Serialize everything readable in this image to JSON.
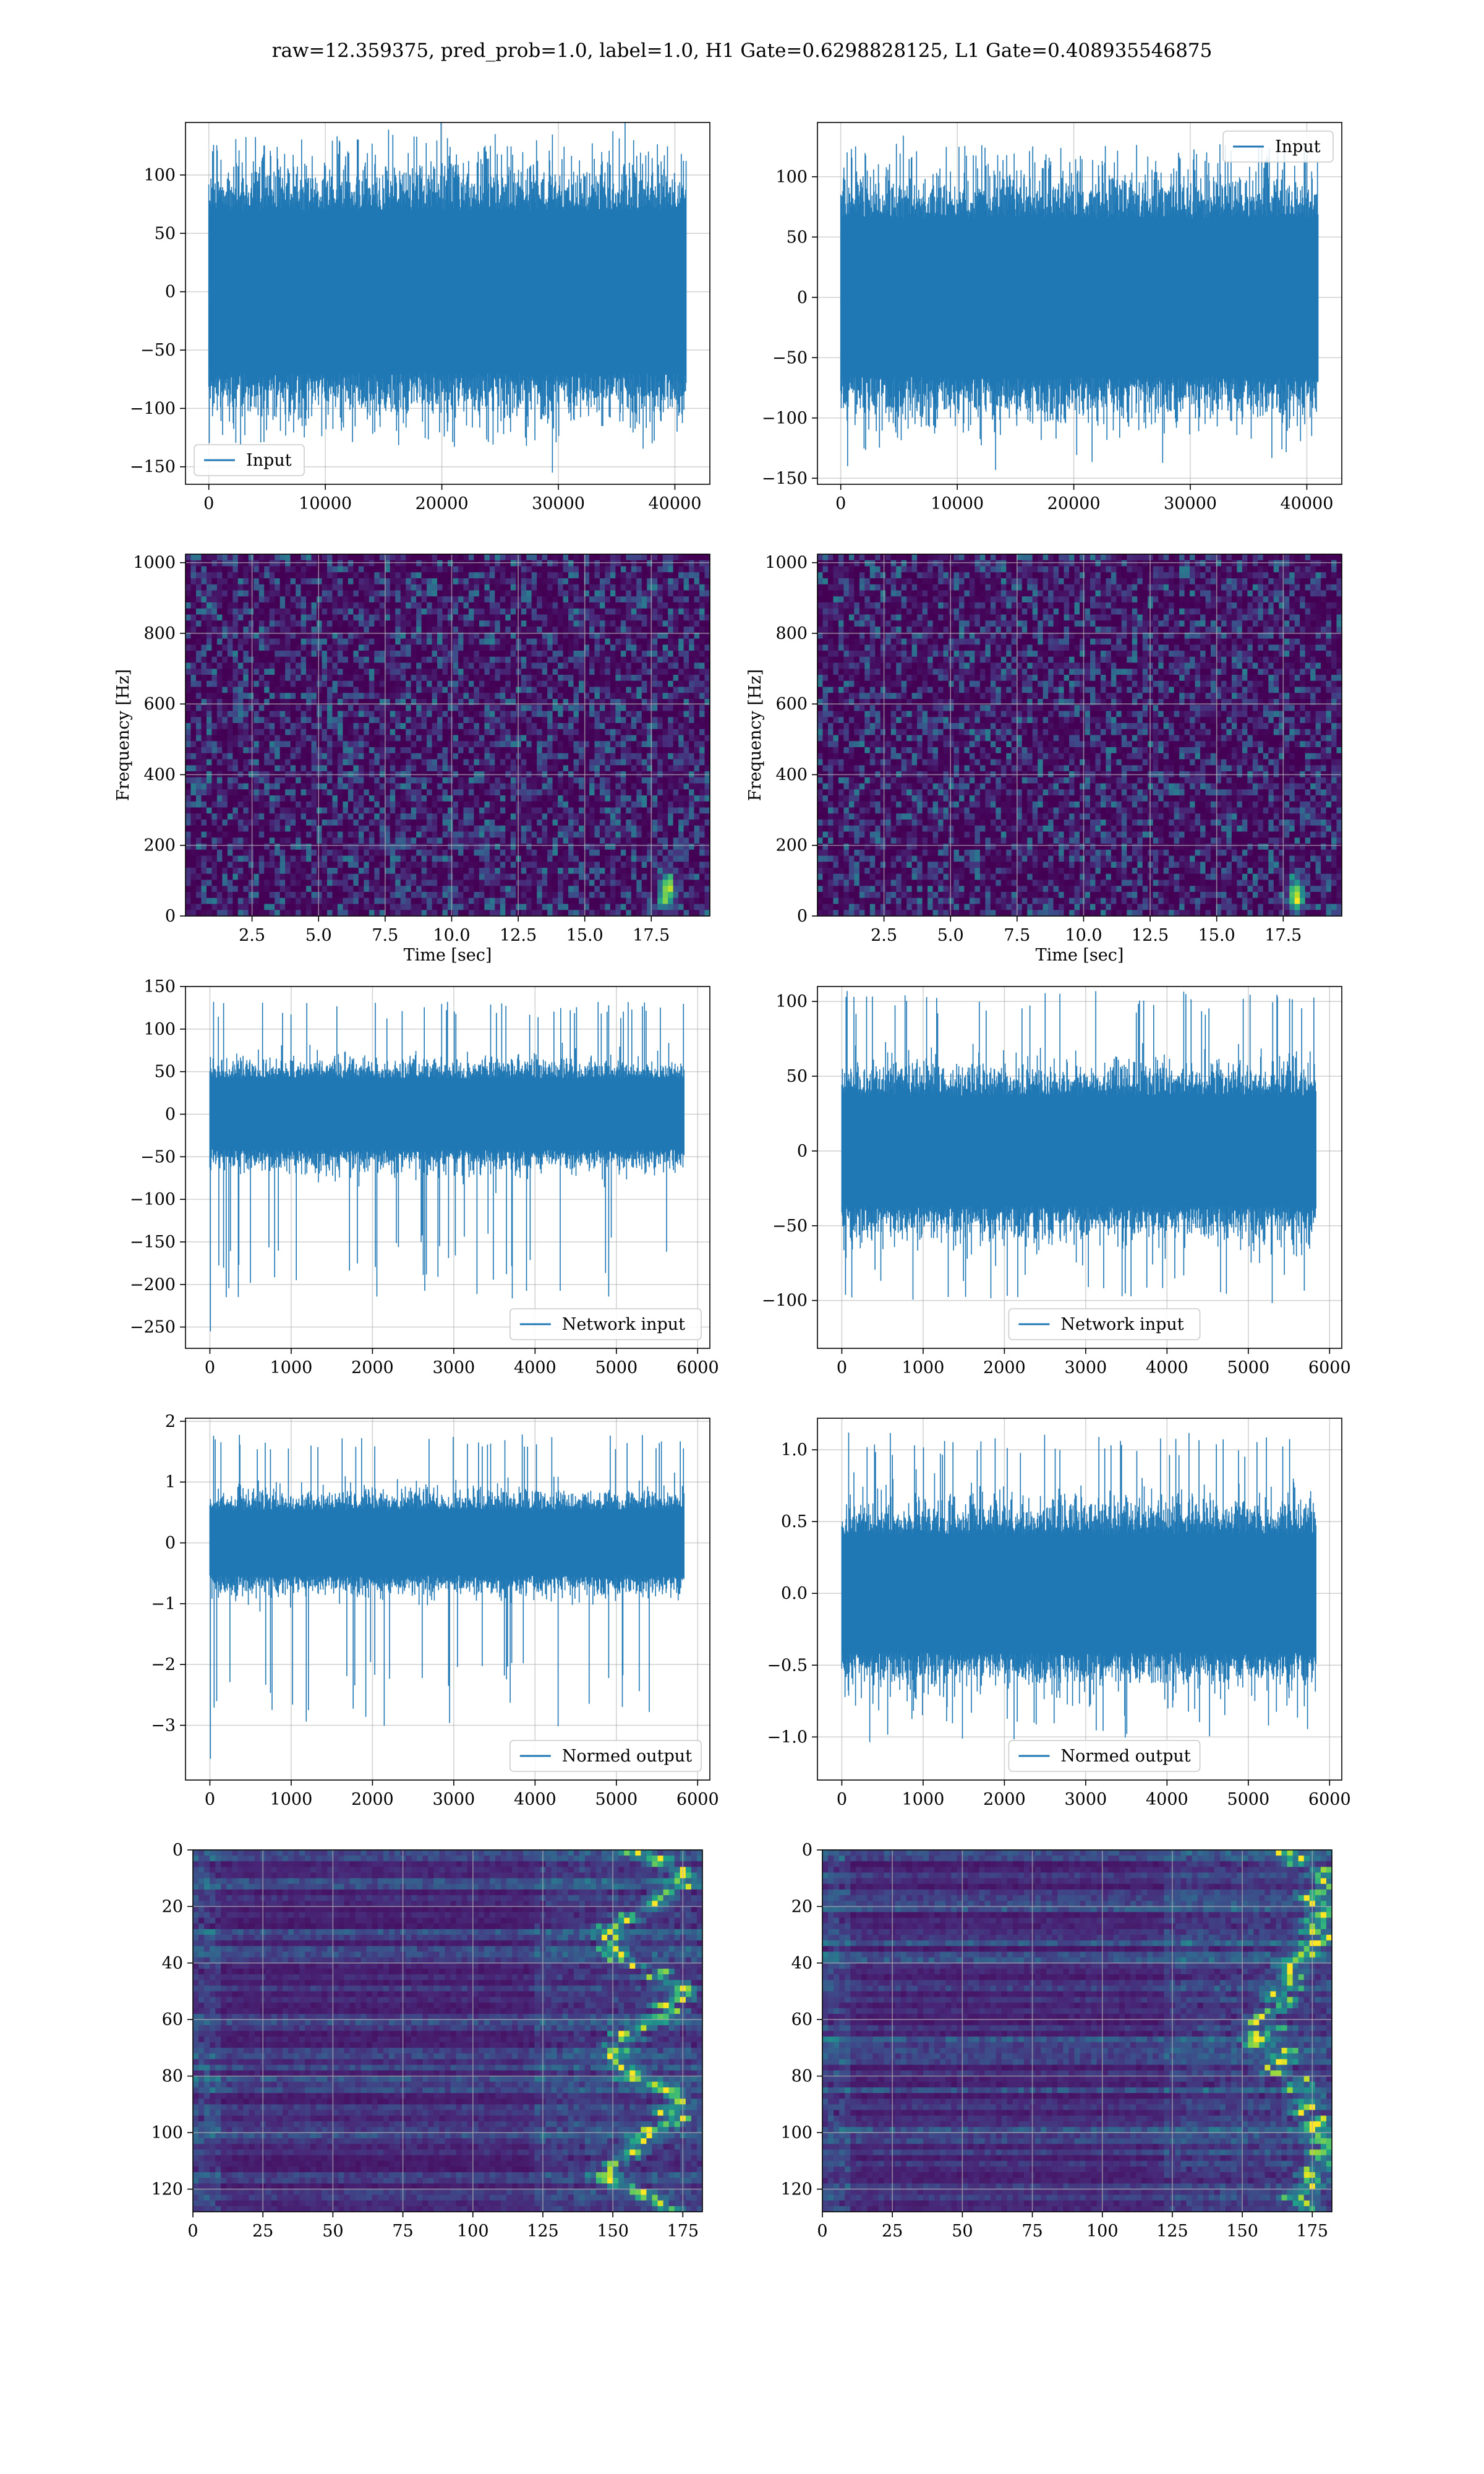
{
  "suptitle": "raw=12.359375, pred_prob=1.0, label=1.0, H1 Gate=0.6298828125, L1 Gate=0.408935546875",
  "colors": {
    "line": "#1f77b4",
    "grid": "#b0b0b0",
    "axis": "#000000"
  },
  "colormap": "viridis",
  "chart_data": [
    {
      "id": "p1",
      "type": "line",
      "xlim": [
        -2000,
        43000
      ],
      "ylim": [
        -165,
        145
      ],
      "xticks": [
        0,
        10000,
        20000,
        30000,
        40000
      ],
      "xticklabels": [
        "0",
        "10000",
        "20000",
        "30000",
        "40000"
      ],
      "yticks": [
        100,
        50,
        0,
        -50,
        -100,
        -150
      ],
      "yticklabels": [
        "100",
        "50",
        "0",
        "−50",
        "−100",
        "−150"
      ],
      "grid": true,
      "legend": {
        "label": "Input",
        "position": "lower-left"
      },
      "series": [
        {
          "name": "Input",
          "n_samples": 40960,
          "band": 85,
          "max": 135,
          "min": -155
        }
      ]
    },
    {
      "id": "p2",
      "type": "line",
      "xlim": [
        -2000,
        43000
      ],
      "ylim": [
        -155,
        145
      ],
      "xticks": [
        0,
        10000,
        20000,
        30000,
        40000
      ],
      "xticklabels": [
        "0",
        "10000",
        "20000",
        "30000",
        "40000"
      ],
      "yticks": [
        100,
        50,
        0,
        -50,
        -100,
        -150
      ],
      "yticklabels": [
        "100",
        "50",
        "0",
        "−50",
        "−100",
        "−150"
      ],
      "grid": true,
      "legend": {
        "label": "Input",
        "position": "upper-right"
      },
      "series": [
        {
          "name": "Input",
          "n_samples": 40960,
          "band": 80,
          "max": 128,
          "min": -140
        }
      ]
    },
    {
      "id": "p3",
      "type": "heatmap",
      "xlabel": "Time [sec]",
      "ylabel": "Frequency [Hz]",
      "xlim": [
        0,
        19.7
      ],
      "ylim": [
        0,
        1024
      ],
      "xticks": [
        2.5,
        5.0,
        7.5,
        10.0,
        12.5,
        15.0,
        17.5
      ],
      "xticklabels": [
        "2.5",
        "5.0",
        "7.5",
        "10.0",
        "12.5",
        "15.0",
        "17.5"
      ],
      "yticks": [
        0,
        200,
        400,
        600,
        800,
        1000
      ],
      "yticklabels": [
        "0",
        "200",
        "400",
        "600",
        "800",
        "1000"
      ],
      "grid": true,
      "hotspot": {
        "t": 18.1,
        "f": 70
      }
    },
    {
      "id": "p4",
      "type": "heatmap",
      "xlabel": "Time [sec]",
      "ylabel": "Frequency [Hz]",
      "xlim": [
        0,
        19.7
      ],
      "ylim": [
        0,
        1024
      ],
      "xticks": [
        2.5,
        5.0,
        7.5,
        10.0,
        12.5,
        15.0,
        17.5
      ],
      "xticklabels": [
        "2.5",
        "5.0",
        "7.5",
        "10.0",
        "12.5",
        "15.0",
        "17.5"
      ],
      "yticks": [
        0,
        200,
        400,
        600,
        800,
        1000
      ],
      "yticklabels": [
        "0",
        "200",
        "400",
        "600",
        "800",
        "1000"
      ],
      "grid": true,
      "hotspot": {
        "t": 18.0,
        "f": 60
      }
    },
    {
      "id": "p5",
      "type": "line",
      "xlim": [
        -300,
        6150
      ],
      "ylim": [
        -275,
        150
      ],
      "xticks": [
        0,
        1000,
        2000,
        3000,
        4000,
        5000,
        6000
      ],
      "xticklabels": [
        "0",
        "1000",
        "2000",
        "3000",
        "4000",
        "5000",
        "6000"
      ],
      "yticks": [
        150,
        100,
        50,
        0,
        -50,
        -100,
        -150,
        -200,
        -250
      ],
      "yticklabels": [
        "150",
        "100",
        "50",
        "0",
        "−50",
        "−100",
        "−150",
        "−200",
        "−250"
      ],
      "grid": true,
      "legend": {
        "label": "Network input",
        "position": "lower-right"
      },
      "series": [
        {
          "name": "Network input",
          "n_samples": 5832,
          "band": 50,
          "max": 132,
          "min": -255
        }
      ]
    },
    {
      "id": "p6",
      "type": "line",
      "xlim": [
        -300,
        6150
      ],
      "ylim": [
        -132,
        110
      ],
      "xticks": [
        0,
        1000,
        2000,
        3000,
        4000,
        5000,
        6000
      ],
      "xticklabels": [
        "0",
        "1000",
        "2000",
        "3000",
        "4000",
        "5000",
        "6000"
      ],
      "yticks": [
        100,
        50,
        0,
        -50,
        -100
      ],
      "yticklabels": [
        "100",
        "50",
        "0",
        "−50",
        "−100"
      ],
      "grid": true,
      "legend": {
        "label": "Network input",
        "position": "lower-center"
      },
      "series": [
        {
          "name": "Network input",
          "n_samples": 5832,
          "band": 45,
          "max": 107,
          "min": -120
        }
      ]
    },
    {
      "id": "p7",
      "type": "line",
      "xlim": [
        -300,
        6150
      ],
      "ylim": [
        -3.9,
        2.05
      ],
      "xticks": [
        0,
        1000,
        2000,
        3000,
        4000,
        5000,
        6000
      ],
      "xticklabels": [
        "0",
        "1000",
        "2000",
        "3000",
        "4000",
        "5000",
        "6000"
      ],
      "yticks": [
        2,
        1,
        0,
        -1,
        -2,
        -3
      ],
      "yticklabels": [
        "2",
        "1",
        "0",
        "−1",
        "−2",
        "−3"
      ],
      "grid": true,
      "legend": {
        "label": "Normed output",
        "position": "lower-right"
      },
      "series": [
        {
          "name": "Normed output",
          "n_samples": 5832,
          "band": 0.65,
          "max": 1.8,
          "min": -3.55
        }
      ]
    },
    {
      "id": "p8",
      "type": "line",
      "xlim": [
        -300,
        6150
      ],
      "ylim": [
        -1.3,
        1.22
      ],
      "xticks": [
        0,
        1000,
        2000,
        3000,
        4000,
        5000,
        6000
      ],
      "xticklabels": [
        "0",
        "1000",
        "2000",
        "3000",
        "4000",
        "5000",
        "6000"
      ],
      "yticks": [
        1.0,
        0.5,
        0.0,
        -0.5,
        -1.0
      ],
      "yticklabels": [
        "1.0",
        "0.5",
        "0.0",
        "−0.5",
        "−1.0"
      ],
      "grid": true,
      "legend": {
        "label": "Normed output",
        "position": "lower-center"
      },
      "series": [
        {
          "name": "Normed output",
          "n_samples": 5832,
          "band": 0.5,
          "max": 1.12,
          "min": -1.22
        }
      ]
    },
    {
      "id": "p9",
      "type": "heatmap",
      "xlim": [
        0,
        182
      ],
      "ylim": [
        128,
        0
      ],
      "xticks": [
        0,
        25,
        50,
        75,
        100,
        125,
        150,
        175
      ],
      "xticklabels": [
        "0",
        "25",
        "50",
        "75",
        "100",
        "125",
        "150",
        "175"
      ],
      "yticks": [
        0,
        20,
        40,
        60,
        80,
        100,
        120
      ],
      "yticklabels": [
        "0",
        "20",
        "40",
        "60",
        "80",
        "100",
        "120"
      ],
      "grid": true,
      "rows": 128,
      "cols": 182,
      "variant": "left"
    },
    {
      "id": "p10",
      "type": "heatmap",
      "xlim": [
        0,
        182
      ],
      "ylim": [
        128,
        0
      ],
      "xticks": [
        0,
        25,
        50,
        75,
        100,
        125,
        150,
        175
      ],
      "xticklabels": [
        "0",
        "25",
        "50",
        "75",
        "100",
        "125",
        "150",
        "175"
      ],
      "yticks": [
        0,
        20,
        40,
        60,
        80,
        100,
        120
      ],
      "yticklabels": [
        "0",
        "20",
        "40",
        "60",
        "80",
        "100",
        "120"
      ],
      "grid": true,
      "rows": 128,
      "cols": 182,
      "variant": "right"
    }
  ]
}
